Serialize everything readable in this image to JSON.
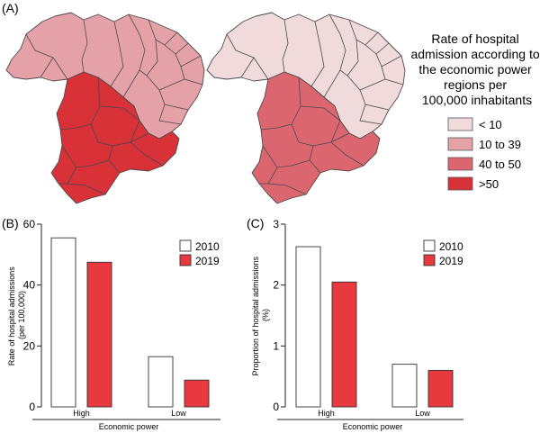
{
  "panels": {
    "a": "(A)",
    "b": "(B)",
    "c": "(C)"
  },
  "maps": {
    "legend_title_lines": [
      "Rate of hospital",
      "admission according to",
      "the economic power",
      "regions per",
      "100,000 inhabitants"
    ],
    "legend": [
      {
        "label": "< 10",
        "color": "#f1dadc"
      },
      {
        "label": "10 to 39",
        "color": "#e4a2a8"
      },
      {
        "label": "40 to 50",
        "color": "#dc6670"
      },
      {
        "label": ">50",
        "color": "#d83138"
      }
    ],
    "map_2010": {
      "north_northeast_class": 1,
      "central_south_class": 3
    },
    "map_2019": {
      "north_northeast_class": 0,
      "central_south_class": 2
    }
  },
  "chart_data": [
    {
      "type": "bar",
      "panel": "B",
      "categories": [
        "High",
        "Low"
      ],
      "series": [
        {
          "name": "2010",
          "color": "#ffffff",
          "values": [
            55.5,
            16.5
          ]
        },
        {
          "name": "2019",
          "color": "#e8393f",
          "values": [
            47.5,
            8.8
          ]
        }
      ],
      "ylabel_lines": [
        "Rate of hospital admissions",
        "(per 100,000)"
      ],
      "xlabel": "Economic power",
      "ylim": [
        0,
        60
      ],
      "yticks": [
        0,
        20,
        40,
        60
      ],
      "legend": "top-right",
      "grid": false
    },
    {
      "type": "bar",
      "panel": "C",
      "categories": [
        "High",
        "Low"
      ],
      "series": [
        {
          "name": "2010",
          "color": "#ffffff",
          "values": [
            2.63,
            0.7
          ]
        },
        {
          "name": "2019",
          "color": "#e8393f",
          "values": [
            2.05,
            0.6
          ]
        }
      ],
      "ylabel_lines": [
        "Proportion of hospital admissions",
        "(%)"
      ],
      "xlabel": "Economic power",
      "ylim": [
        0,
        3
      ],
      "yticks": [
        0,
        1,
        2,
        3
      ],
      "legend": "top-right",
      "grid": false
    }
  ]
}
